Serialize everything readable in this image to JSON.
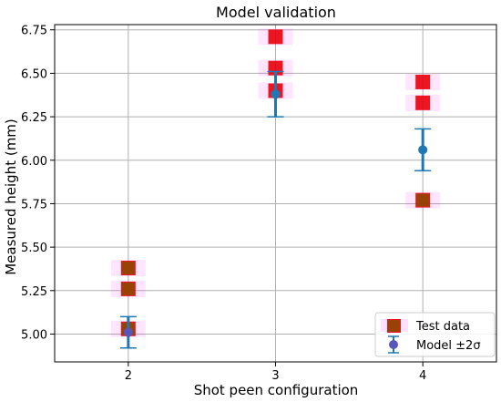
{
  "chart_data": {
    "type": "scatter",
    "title": "Model validation",
    "xlabel": "Shot peen configuration",
    "ylabel": "Measured height (mm)",
    "x_ticks": [
      "2",
      "3",
      "4"
    ],
    "y_ticks": [
      "5.00",
      "5.25",
      "5.50",
      "5.75",
      "6.00",
      "6.25",
      "6.50",
      "6.75"
    ],
    "xlim": [
      1.5,
      4.5
    ],
    "ylim": [
      4.84,
      6.78
    ],
    "grid": true,
    "legend_position": "bottom-right",
    "series": [
      {
        "name": "Test data",
        "kind": "marker-square",
        "color": "#e8000b",
        "points": [
          {
            "x": 2,
            "y": 5.38
          },
          {
            "x": 2,
            "y": 5.26
          },
          {
            "x": 2,
            "y": 5.03
          },
          {
            "x": 3,
            "y": 6.71
          },
          {
            "x": 3,
            "y": 6.53
          },
          {
            "x": 3,
            "y": 6.4
          },
          {
            "x": 4,
            "y": 6.45
          },
          {
            "x": 4,
            "y": 6.33
          },
          {
            "x": 4,
            "y": 5.77
          }
        ]
      },
      {
        "name": "Model ±2σ",
        "kind": "errorbar",
        "color": "#1f77b4",
        "points": [
          {
            "x": 2,
            "y": 5.01,
            "err": 0.09
          },
          {
            "x": 3,
            "y": 6.38,
            "err": 0.13
          },
          {
            "x": 4,
            "y": 6.06,
            "err": 0.12
          }
        ]
      }
    ]
  }
}
